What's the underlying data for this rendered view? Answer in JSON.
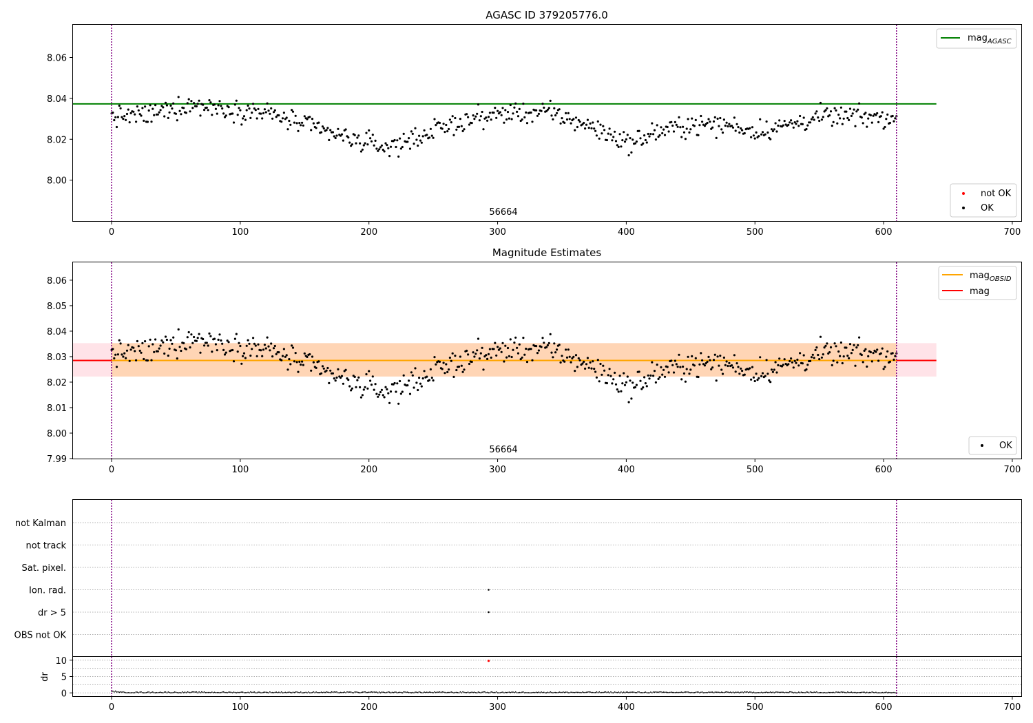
{
  "chart_data": [
    {
      "type": "scatter",
      "title": "AGASC ID 379205776.0",
      "xlabel": "",
      "ylabel": "",
      "xlim": [
        -30,
        707
      ],
      "ylim": [
        7.98,
        8.076
      ],
      "xticks": [
        "0",
        "100",
        "200",
        "300",
        "400",
        "500",
        "600",
        "700"
      ],
      "yticks": [
        "8.00",
        "8.02",
        "8.04",
        "8.06"
      ],
      "annotation": "56664",
      "reference_lines": [
        {
          "name": "mag_AGASC",
          "y": 8.0373,
          "x_range": [
            -30,
            641
          ],
          "color": "#008000"
        }
      ],
      "obsid_boundaries": [
        0,
        610
      ],
      "series": [
        {
          "name": "not OK",
          "color": "#ff0000",
          "points": []
        },
        {
          "name": "OK",
          "color": "#000000",
          "points_ref": "shared_ok_points"
        }
      ],
      "legends": [
        {
          "position": "top-right",
          "entries": [
            {
              "label": "mag",
              "sub": "AGASC",
              "kind": "line",
              "color": "#008000"
            }
          ]
        },
        {
          "position": "bottom-right",
          "entries": [
            {
              "label": "not OK",
              "kind": "dot",
              "color": "#ff0000"
            },
            {
              "label": "OK",
              "kind": "dot",
              "color": "#000000"
            }
          ]
        }
      ]
    },
    {
      "type": "scatter",
      "title": "Magnitude Estimates",
      "xlabel": "",
      "ylabel": "",
      "xlim": [
        -30,
        707
      ],
      "ylim": [
        7.99,
        8.067
      ],
      "xticks": [
        "0",
        "100",
        "200",
        "300",
        "400",
        "500",
        "600",
        "700"
      ],
      "yticks": [
        "7.99",
        "8.00",
        "8.01",
        "8.02",
        "8.03",
        "8.04",
        "8.05",
        "8.06"
      ],
      "annotation": "56664",
      "reference_lines": [
        {
          "name": "mag",
          "y": 8.0285,
          "x_range": [
            -30,
            641
          ],
          "color": "#ff0000"
        },
        {
          "name": "mag_OBSID",
          "y": 8.0285,
          "x_range": [
            0,
            610
          ],
          "color": "#ffa500"
        }
      ],
      "bands": [
        {
          "y_range": [
            8.0222,
            8.0353
          ],
          "x_range": [
            -30,
            641
          ],
          "color": "#ffc0cb",
          "opacity": 0.45
        },
        {
          "y_range": [
            8.0222,
            8.0353
          ],
          "x_range": [
            0,
            610
          ],
          "color": "#ffa500",
          "opacity": 0.22
        }
      ],
      "obsid_boundaries": [
        0,
        610
      ],
      "series": [
        {
          "name": "OK",
          "color": "#000000",
          "points_ref": "shared_ok_points"
        }
      ],
      "legends": [
        {
          "position": "top-right",
          "entries": [
            {
              "label": "mag",
              "sub": "OBSID",
              "kind": "line",
              "color": "#ffa500"
            },
            {
              "label": "mag",
              "kind": "line",
              "color": "#ff0000"
            }
          ]
        },
        {
          "position": "bottom-right",
          "entries": [
            {
              "label": "OK",
              "kind": "dot",
              "color": "#000000"
            }
          ]
        }
      ]
    },
    {
      "type": "scatter",
      "title": "",
      "xlabel": "",
      "ylabel": "",
      "xlim": [
        -30,
        707
      ],
      "categories": [
        "not Kalman",
        "not track",
        "Sat. pixel.",
        "Ion. rad.",
        "dr > 5",
        "OBS not OK"
      ],
      "flag_points": [
        {
          "category": "Ion. rad.",
          "x": 293
        },
        {
          "category": "dr > 5",
          "x": 293
        }
      ],
      "obsid_boundaries": [
        0,
        610
      ],
      "grid": true
    },
    {
      "type": "scatter",
      "title": "",
      "xlabel": "",
      "ylabel": "dr",
      "xlim": [
        -30,
        707
      ],
      "ylim": [
        -1,
        11
      ],
      "xticks": [
        "0",
        "100",
        "200",
        "300",
        "400",
        "500",
        "600",
        "700"
      ],
      "yticks": [
        "0",
        "5",
        "10"
      ],
      "threshold_y": 5,
      "outliers": [
        {
          "x": 293,
          "y": 9.8,
          "color": "#ff0000"
        }
      ],
      "baseline": {
        "y_min": 0,
        "y_max": 0.5,
        "x_range": [
          0,
          610
        ]
      },
      "obsid_boundaries": [
        0,
        610
      ]
    }
  ],
  "shared_ok_points": {
    "x_range": [
      0,
      610
    ],
    "count": 611,
    "trend_x": [
      0,
      30,
      60,
      90,
      120,
      150,
      180,
      200,
      215,
      250,
      280,
      310,
      340,
      370,
      395,
      405,
      420,
      450,
      480,
      500,
      520,
      550,
      580,
      610
    ],
    "trend_y": [
      8.031,
      8.032,
      8.037,
      8.035,
      8.033,
      8.027,
      8.021,
      8.018,
      8.016,
      8.024,
      8.03,
      8.033,
      8.033,
      8.027,
      8.02,
      8.018,
      8.023,
      8.027,
      8.027,
      8.024,
      8.026,
      8.031,
      8.031,
      8.03
    ],
    "spread": 0.0045
  },
  "colors": {
    "boundary": "#800080",
    "grid": "#b0b0b0",
    "ok": "#000000",
    "not_ok": "#ff0000"
  }
}
